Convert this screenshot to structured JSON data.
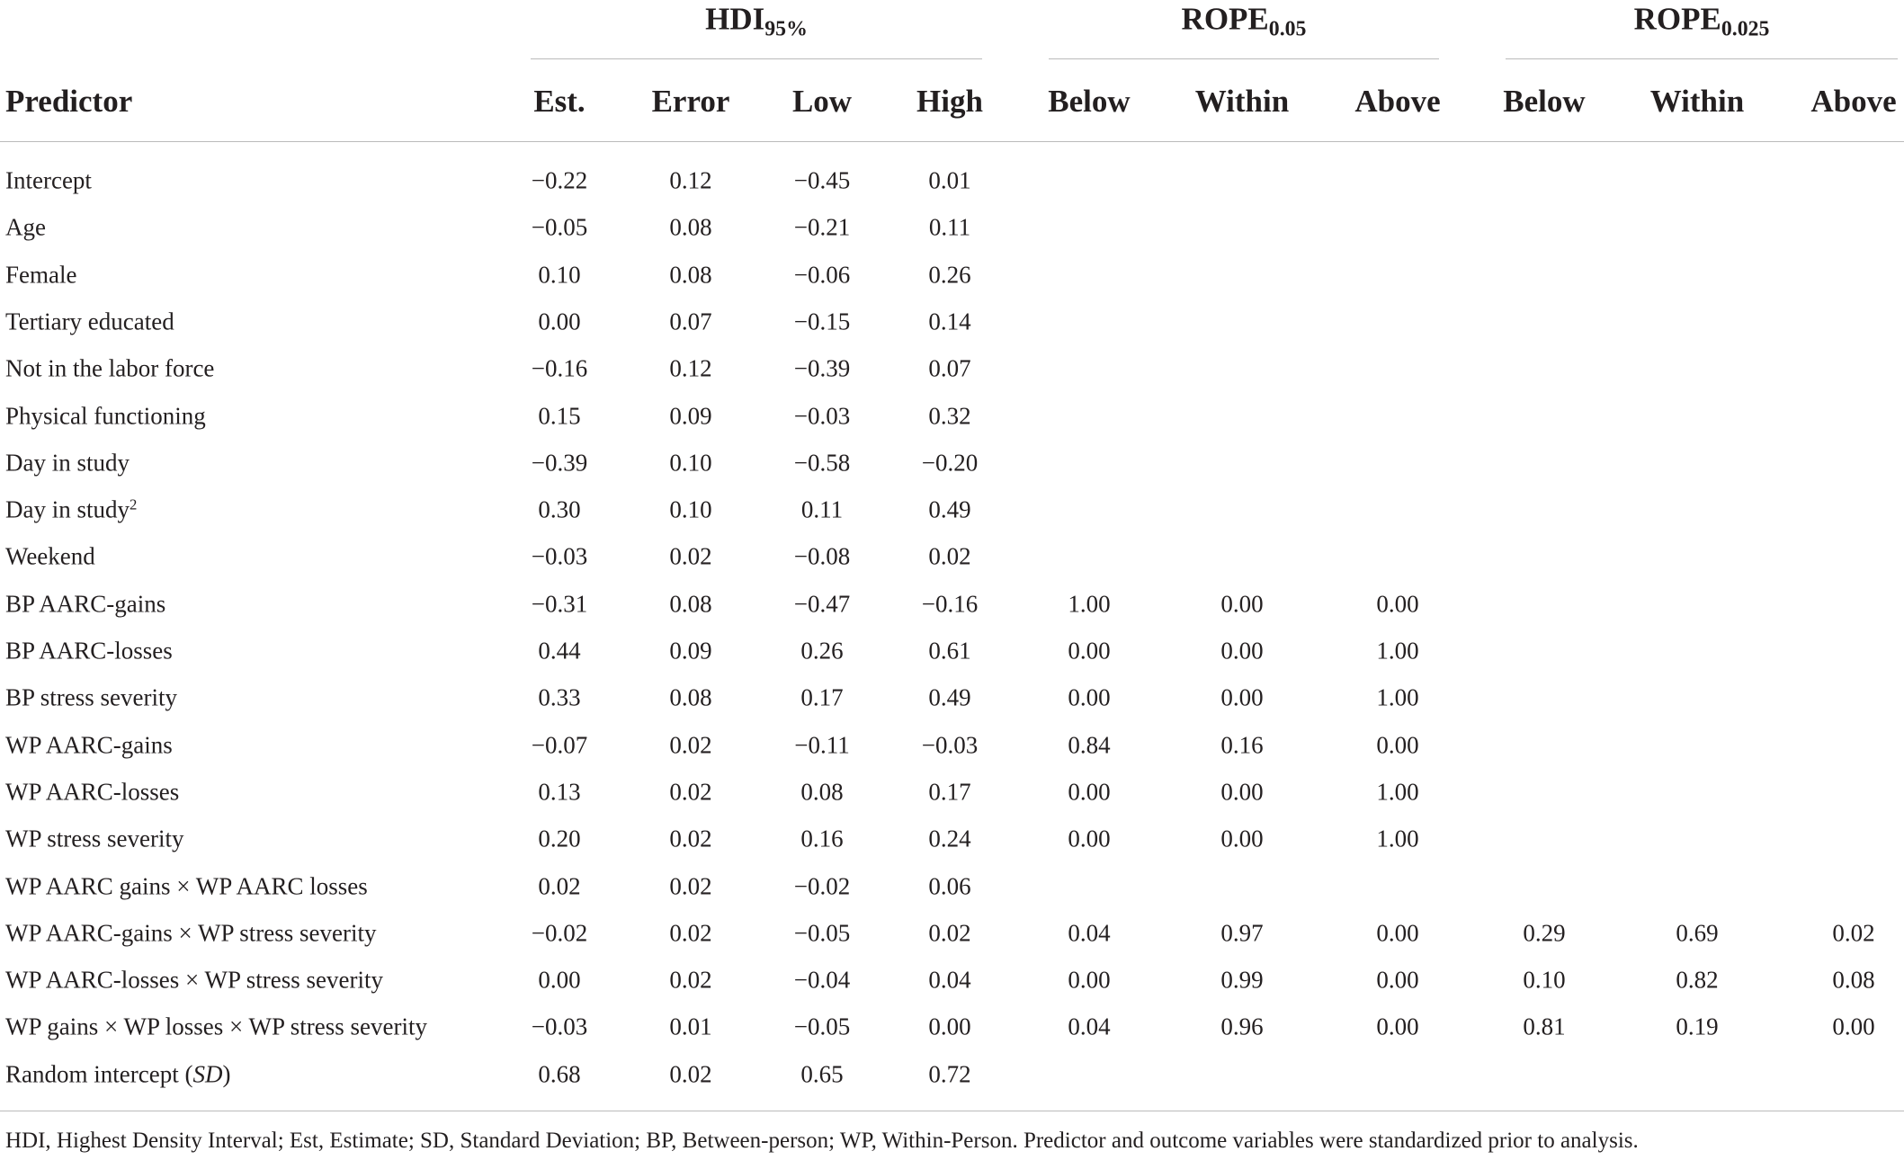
{
  "table": {
    "groups": [
      {
        "base": "HDI",
        "sub": "95%"
      },
      {
        "base": "ROPE",
        "sub": "0.05"
      },
      {
        "base": "ROPE",
        "sub": "0.025"
      }
    ],
    "columns": [
      "Predictor",
      "Est.",
      "Error",
      "Low",
      "High",
      "Below",
      "Within",
      "Above",
      "Below",
      "Within",
      "Above"
    ],
    "rows": [
      {
        "label": "Intercept",
        "cells": [
          "−0.22",
          "0.12",
          "−0.45",
          "0.01"
        ]
      },
      {
        "label": "Age",
        "cells": [
          "−0.05",
          "0.08",
          "−0.21",
          "0.11"
        ]
      },
      {
        "label": "Female",
        "cells": [
          "0.10",
          "0.08",
          "−0.06",
          "0.26"
        ]
      },
      {
        "label": "Tertiary educated",
        "cells": [
          "0.00",
          "0.07",
          "−0.15",
          "0.14"
        ]
      },
      {
        "label": "Not in the labor force",
        "cells": [
          "−0.16",
          "0.12",
          "−0.39",
          "0.07"
        ]
      },
      {
        "label": "Physical functioning",
        "cells": [
          "0.15",
          "0.09",
          "−0.03",
          "0.32"
        ]
      },
      {
        "label": "Day in study",
        "cells": [
          "−0.39",
          "0.10",
          "−0.58",
          "−0.20"
        ]
      },
      {
        "label": "Day in study",
        "sup": "2",
        "cells": [
          "0.30",
          "0.10",
          "0.11",
          "0.49"
        ]
      },
      {
        "label": "Weekend",
        "cells": [
          "−0.03",
          "0.02",
          "−0.08",
          "0.02"
        ]
      },
      {
        "label": "BP AARC-gains",
        "cells": [
          "−0.31",
          "0.08",
          "−0.47",
          "−0.16",
          "1.00",
          "0.00",
          "0.00"
        ]
      },
      {
        "label": "BP AARC-losses",
        "cells": [
          "0.44",
          "0.09",
          "0.26",
          "0.61",
          "0.00",
          "0.00",
          "1.00"
        ]
      },
      {
        "label": "BP stress severity",
        "cells": [
          "0.33",
          "0.08",
          "0.17",
          "0.49",
          "0.00",
          "0.00",
          "1.00"
        ]
      },
      {
        "label": "WP AARC-gains",
        "cells": [
          "−0.07",
          "0.02",
          "−0.11",
          "−0.03",
          "0.84",
          "0.16",
          "0.00"
        ]
      },
      {
        "label": "WP AARC-losses",
        "cells": [
          "0.13",
          "0.02",
          "0.08",
          "0.17",
          "0.00",
          "0.00",
          "1.00"
        ]
      },
      {
        "label": "WP stress severity",
        "cells": [
          "0.20",
          "0.02",
          "0.16",
          "0.24",
          "0.00",
          "0.00",
          "1.00"
        ]
      },
      {
        "label": "WP AARC gains × WP AARC losses",
        "cells": [
          "0.02",
          "0.02",
          "−0.02",
          "0.06"
        ]
      },
      {
        "label": "WP AARC-gains × WP stress severity",
        "cells": [
          "−0.02",
          "0.02",
          "−0.05",
          "0.02",
          "0.04",
          "0.97",
          "0.00",
          "0.29",
          "0.69",
          "0.02"
        ]
      },
      {
        "label": "WP AARC-losses × WP stress severity",
        "cells": [
          "0.00",
          "0.02",
          "−0.04",
          "0.04",
          "0.00",
          "0.99",
          "0.00",
          "0.10",
          "0.82",
          "0.08"
        ]
      },
      {
        "label": "WP gains × WP losses × WP stress severity",
        "cells": [
          "−0.03",
          "0.01",
          "−0.05",
          "0.00",
          "0.04",
          "0.96",
          "0.00",
          "0.81",
          "0.19",
          "0.00"
        ]
      },
      {
        "label": "Random intercept (",
        "italic": "SD",
        "after": ")",
        "cells": [
          "0.68",
          "0.02",
          "0.65",
          "0.72"
        ]
      }
    ]
  },
  "footnote": "HDI, Highest Density Interval; Est, Estimate; SD, Standard Deviation; BP, Between-person; WP, Within-Person. Predictor and outcome variables were standardized prior to analysis."
}
